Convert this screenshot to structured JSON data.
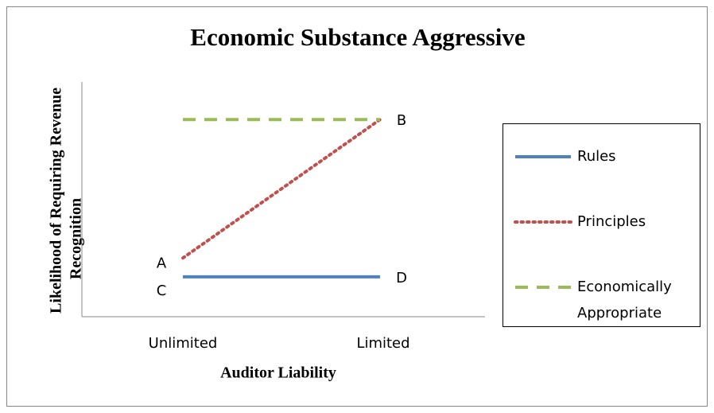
{
  "chart_data": {
    "type": "line",
    "title": "Economic Substance Aggressive",
    "x_label": "Auditor Liability",
    "y_label": [
      "Likelihood of Requiring Revenue",
      "Recognition"
    ],
    "categories": [
      "Unlimited",
      "Limited"
    ],
    "ylim": [
      0,
      100
    ],
    "series": [
      {
        "name": "Rules",
        "color": "#4f81bd",
        "style": "solid",
        "values": [
          17,
          17
        ],
        "point_labels": [
          "C",
          "D"
        ]
      },
      {
        "name": "Principles",
        "color": "#c0504d",
        "style": "dotted",
        "values": [
          25,
          84
        ],
        "point_labels": [
          "A",
          "B"
        ]
      },
      {
        "name": "Economically Appropriate",
        "color": "#9bbb59",
        "style": "dashed",
        "values": [
          84,
          84
        ]
      }
    ],
    "legend": "right"
  }
}
